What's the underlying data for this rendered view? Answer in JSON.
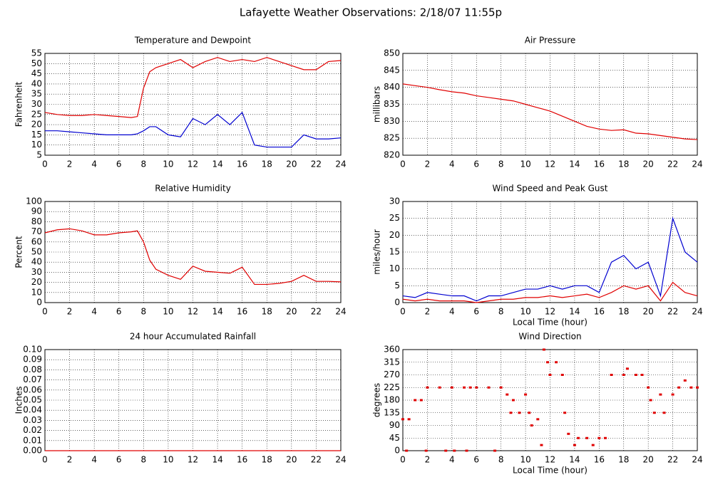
{
  "title": "Lafayette Weather Observations: 2/18/07 11:55p",
  "chart_data": [
    {
      "type": "line",
      "title": "Temperature and Dewpoint",
      "ylabel": "Fahrenheit",
      "x": [
        0,
        1,
        2,
        3,
        4,
        5,
        6,
        7,
        7.5,
        8,
        8.5,
        9,
        10,
        11,
        12,
        13,
        14,
        15,
        16,
        17,
        18,
        19,
        20,
        21,
        22,
        23,
        24
      ],
      "series": [
        {
          "color": "#e00000",
          "values": [
            26,
            25,
            24.5,
            24.5,
            25,
            24.5,
            24,
            23.5,
            24,
            38,
            46,
            48,
            50,
            52,
            48,
            51,
            53,
            51,
            52,
            51,
            53,
            51,
            49,
            47,
            47,
            51,
            51.5
          ]
        },
        {
          "color": "#0000d0",
          "values": [
            17,
            17,
            16.5,
            16,
            15.5,
            15,
            15,
            15,
            15.5,
            17,
            19,
            19,
            15,
            14,
            23,
            20,
            25,
            20,
            26,
            10,
            9,
            9,
            9,
            15,
            13,
            13,
            13.5
          ]
        }
      ],
      "xlim": [
        0,
        24
      ],
      "xticks": [
        0,
        2,
        4,
        6,
        8,
        10,
        12,
        14,
        16,
        18,
        20,
        22,
        24
      ],
      "ylim": [
        5,
        55
      ],
      "yticks": [
        5,
        10,
        15,
        20,
        25,
        30,
        35,
        40,
        45,
        50,
        55
      ],
      "grid": true
    },
    {
      "type": "line",
      "title": "Air Pressure",
      "ylabel": "millibars",
      "x": [
        0,
        1,
        2,
        3,
        4,
        5,
        6,
        7,
        8,
        9,
        10,
        11,
        12,
        13,
        14,
        15,
        16,
        17,
        18,
        19,
        20,
        21,
        22,
        23,
        24
      ],
      "series": [
        {
          "color": "#e00000",
          "values": [
            841,
            840.5,
            840,
            839.3,
            838.7,
            838.3,
            837.5,
            837,
            836.5,
            836,
            835,
            834,
            833,
            831.5,
            830,
            828.5,
            827.7,
            827.3,
            827.5,
            826.5,
            826.3,
            825.8,
            825.3,
            824.8,
            824.6
          ]
        }
      ],
      "xlim": [
        0,
        24
      ],
      "xticks": [
        0,
        2,
        4,
        6,
        8,
        10,
        12,
        14,
        16,
        18,
        20,
        22,
        24
      ],
      "ylim": [
        820,
        850
      ],
      "yticks": [
        820,
        825,
        830,
        835,
        840,
        845,
        850
      ],
      "grid": true
    },
    {
      "type": "line",
      "title": "Relative Humidity",
      "ylabel": "Percent",
      "x": [
        0,
        1,
        2,
        3,
        4,
        5,
        6,
        7,
        7.5,
        8,
        8.5,
        9,
        10,
        11,
        12,
        13,
        14,
        15,
        16,
        17,
        18,
        19,
        20,
        21,
        22,
        23,
        24
      ],
      "series": [
        {
          "color": "#e00000",
          "values": [
            69,
            72,
            73,
            71,
            67,
            67,
            69,
            70,
            71,
            60,
            42,
            33,
            27,
            23,
            36,
            31,
            30,
            29,
            35,
            18,
            18,
            19,
            21,
            27,
            21,
            21,
            20.5
          ]
        }
      ],
      "xlim": [
        0,
        24
      ],
      "xticks": [
        0,
        2,
        4,
        6,
        8,
        10,
        12,
        14,
        16,
        18,
        20,
        22,
        24
      ],
      "ylim": [
        0,
        100
      ],
      "yticks": [
        0,
        10,
        20,
        30,
        40,
        50,
        60,
        70,
        80,
        90,
        100
      ],
      "grid": true
    },
    {
      "type": "line",
      "title": "Wind Speed and Peak Gust",
      "ylabel": "miles/hour",
      "xlabel": "Local Time (hour)",
      "x": [
        0,
        1,
        2,
        3,
        4,
        5,
        6,
        7,
        8,
        9,
        10,
        11,
        12,
        13,
        14,
        15,
        16,
        17,
        18,
        19,
        20,
        21,
        22,
        23,
        24
      ],
      "series": [
        {
          "color": "#0000d0",
          "values": [
            2,
            1.5,
            3,
            2.5,
            2,
            2,
            0.5,
            2,
            2,
            3,
            4,
            4,
            5,
            4,
            5,
            5,
            3,
            12,
            14,
            10,
            12,
            2,
            25,
            15,
            12
          ]
        },
        {
          "color": "#e00000",
          "values": [
            1,
            0.5,
            1,
            0.5,
            0.5,
            0.5,
            0,
            0.5,
            1,
            1,
            1.5,
            1.5,
            2,
            1.5,
            2,
            2.5,
            1.5,
            3,
            5,
            4,
            5,
            0.5,
            6,
            3,
            2
          ]
        }
      ],
      "xlim": [
        0,
        24
      ],
      "xticks": [
        0,
        2,
        4,
        6,
        8,
        10,
        12,
        14,
        16,
        18,
        20,
        22,
        24
      ],
      "ylim": [
        0,
        30
      ],
      "yticks": [
        0,
        5,
        10,
        15,
        20,
        25,
        30
      ],
      "grid": true
    },
    {
      "type": "line",
      "title": "24 hour Accumulated Rainfall",
      "ylabel": "Inches",
      "x": [
        0,
        24
      ],
      "series": [
        {
          "color": "#e00000",
          "values": [
            0,
            0
          ]
        }
      ],
      "xlim": [
        0,
        24
      ],
      "xticks": [
        0,
        2,
        4,
        6,
        8,
        10,
        12,
        14,
        16,
        18,
        20,
        22,
        24
      ],
      "ylim": [
        0,
        0.1
      ],
      "yticks": [
        {
          "value": 0,
          "label": "0.00"
        },
        {
          "value": 0.01,
          "label": "0.01"
        },
        {
          "value": 0.02,
          "label": "0.02"
        },
        {
          "value": 0.03,
          "label": "0.03"
        },
        {
          "value": 0.04,
          "label": "0.04"
        },
        {
          "value": 0.05,
          "label": "0.05"
        },
        {
          "value": 0.06,
          "label": "0.06"
        },
        {
          "value": 0.07,
          "label": "0.07"
        },
        {
          "value": 0.08,
          "label": "0.08"
        },
        {
          "value": 0.09,
          "label": "0.09"
        },
        {
          "value": 0.1,
          "label": "0.10"
        }
      ],
      "grid": true
    },
    {
      "type": "scatter",
      "title": "Wind Direction",
      "ylabel": "degrees",
      "xlabel": "Local Time (hour)",
      "x": [
        0,
        0.5,
        0.3,
        1,
        1.5,
        1.9,
        2,
        3,
        3.5,
        4,
        4.2,
        5,
        5.2,
        5.5,
        6,
        7,
        7.5,
        8,
        8.5,
        8.8,
        9,
        9.5,
        10,
        10.3,
        10.5,
        11,
        11.3,
        11.5,
        11.8,
        12,
        12.5,
        13,
        13.2,
        13.5,
        14,
        14.3,
        15,
        15.5,
        16,
        16.5,
        17,
        18,
        18.3,
        19,
        19.5,
        20,
        20.2,
        20.5,
        21,
        21.3,
        22,
        22.5,
        23,
        23.5,
        24
      ],
      "series": [
        {
          "color": "#e00000",
          "values": [
            112,
            112,
            0,
            180,
            180,
            0,
            225,
            225,
            0,
            225,
            0,
            225,
            0,
            225,
            225,
            225,
            0,
            225,
            200,
            135,
            180,
            135,
            200,
            135,
            90,
            112,
            20,
            360,
            315,
            270,
            315,
            270,
            135,
            60,
            20,
            45,
            45,
            20,
            45,
            45,
            270,
            270,
            292,
            270,
            270,
            225,
            180,
            135,
            200,
            135,
            200,
            225,
            250,
            225,
            225
          ]
        }
      ],
      "xlim": [
        0,
        24
      ],
      "xticks": [
        0,
        2,
        4,
        6,
        8,
        10,
        12,
        14,
        16,
        18,
        20,
        22,
        24
      ],
      "ylim": [
        0,
        360
      ],
      "yticks": [
        0,
        45,
        90,
        135,
        180,
        225,
        270,
        315,
        360
      ],
      "grid": true
    }
  ]
}
